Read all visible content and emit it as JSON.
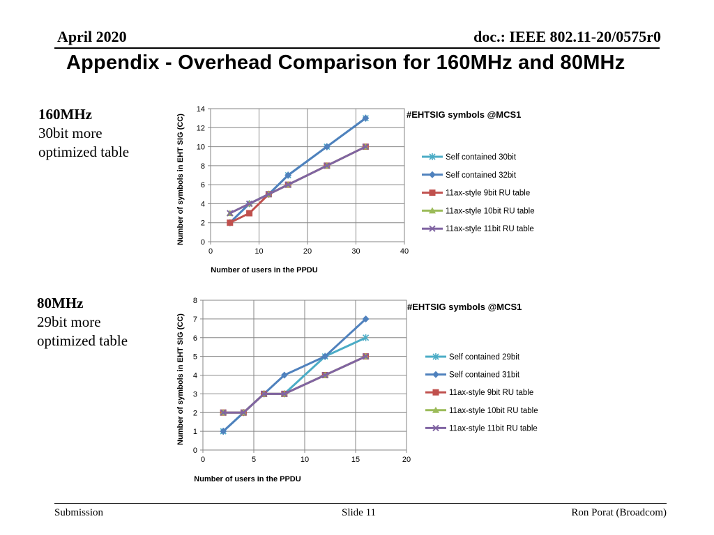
{
  "header": {
    "date": "April 2020",
    "doc": "doc.: IEEE 802.11-20/0575r0",
    "title": "Appendix -  Overhead Comparison  for 160MHz and 80MHz"
  },
  "sections": [
    {
      "heading": "160MHz",
      "line1": "30bit more",
      "line2": "optimized table"
    },
    {
      "heading": "80MHz",
      "line1": "29bit more",
      "line2": "optimized table"
    }
  ],
  "footer": {
    "left": "Submission",
    "center": "Slide 11",
    "right": "Ron Porat (Broadcom)"
  },
  "chart_data": [
    {
      "type": "line",
      "title": "#EHTSIG symbols @MCS1",
      "xlabel": "Number of users in the PPDU",
      "ylabel": "Number of symbols in EHT SIG (CC)",
      "xlim": [
        0,
        40
      ],
      "ylim": [
        0,
        14
      ],
      "xticks": [
        0,
        10,
        20,
        30,
        40
      ],
      "yticks": [
        0,
        2,
        4,
        6,
        8,
        10,
        12,
        14
      ],
      "grid": true,
      "legend": "right",
      "series": [
        {
          "name": "Self contained 30bit",
          "color": "#4bacc6",
          "marker": "star",
          "x": [
            4,
            8,
            12,
            16,
            24,
            32
          ],
          "y": [
            2,
            4,
            5,
            7,
            10,
            13
          ]
        },
        {
          "name": "Self contained 32bit",
          "color": "#4f81bd",
          "marker": "diamond",
          "x": [
            4,
            8,
            12,
            16,
            24,
            32
          ],
          "y": [
            2,
            4,
            5,
            7,
            10,
            13
          ]
        },
        {
          "name": "11ax-style 9bit RU table",
          "color": "#c0504d",
          "marker": "square",
          "x": [
            4,
            8,
            12,
            16,
            24,
            32
          ],
          "y": [
            2,
            3,
            5,
            6,
            8,
            10
          ]
        },
        {
          "name": "11ax-style 10bit RU table",
          "color": "#9bbb59",
          "marker": "triangle",
          "x": [
            4,
            8,
            12,
            16,
            24,
            32
          ],
          "y": [
            3,
            4,
            5,
            6,
            8,
            10
          ]
        },
        {
          "name": "11ax-style 11bit RU table",
          "color": "#8064a2",
          "marker": "x",
          "x": [
            4,
            8,
            12,
            16,
            24,
            32
          ],
          "y": [
            3,
            4,
            5,
            6,
            8,
            10
          ]
        }
      ]
    },
    {
      "type": "line",
      "title": "#EHTSIG symbols @MCS1",
      "xlabel": "Number of users in the PPDU",
      "ylabel": "Number of symbols in EHT SIG (CC)",
      "xlim": [
        0,
        20
      ],
      "ylim": [
        0,
        8
      ],
      "xticks": [
        0,
        5,
        10,
        15,
        20
      ],
      "yticks": [
        0,
        1,
        2,
        3,
        4,
        5,
        6,
        7,
        8
      ],
      "grid": true,
      "legend": "right",
      "series": [
        {
          "name": "Self contained 29bit",
          "color": "#4bacc6",
          "marker": "star",
          "x": [
            2,
            4,
            6,
            8,
            12,
            16
          ],
          "y": [
            1,
            2,
            3,
            3,
            5,
            6
          ]
        },
        {
          "name": "Self contained 31bit",
          "color": "#4f81bd",
          "marker": "diamond",
          "x": [
            2,
            4,
            6,
            8,
            12,
            16
          ],
          "y": [
            1,
            2,
            3,
            4,
            5,
            7
          ]
        },
        {
          "name": "11ax-style 9bit RU table",
          "color": "#c0504d",
          "marker": "square",
          "x": [
            2,
            4,
            6,
            8,
            12,
            16
          ],
          "y": [
            2,
            2,
            3,
            3,
            4,
            5
          ]
        },
        {
          "name": "11ax-style 10bit RU table",
          "color": "#9bbb59",
          "marker": "triangle",
          "x": [
            2,
            4,
            6,
            8,
            12,
            16
          ],
          "y": [
            2,
            2,
            3,
            3,
            4,
            5
          ]
        },
        {
          "name": "11ax-style 11bit RU table",
          "color": "#8064a2",
          "marker": "x",
          "x": [
            2,
            4,
            6,
            8,
            12,
            16
          ],
          "y": [
            2,
            2,
            3,
            3,
            4,
            5
          ]
        }
      ]
    }
  ]
}
